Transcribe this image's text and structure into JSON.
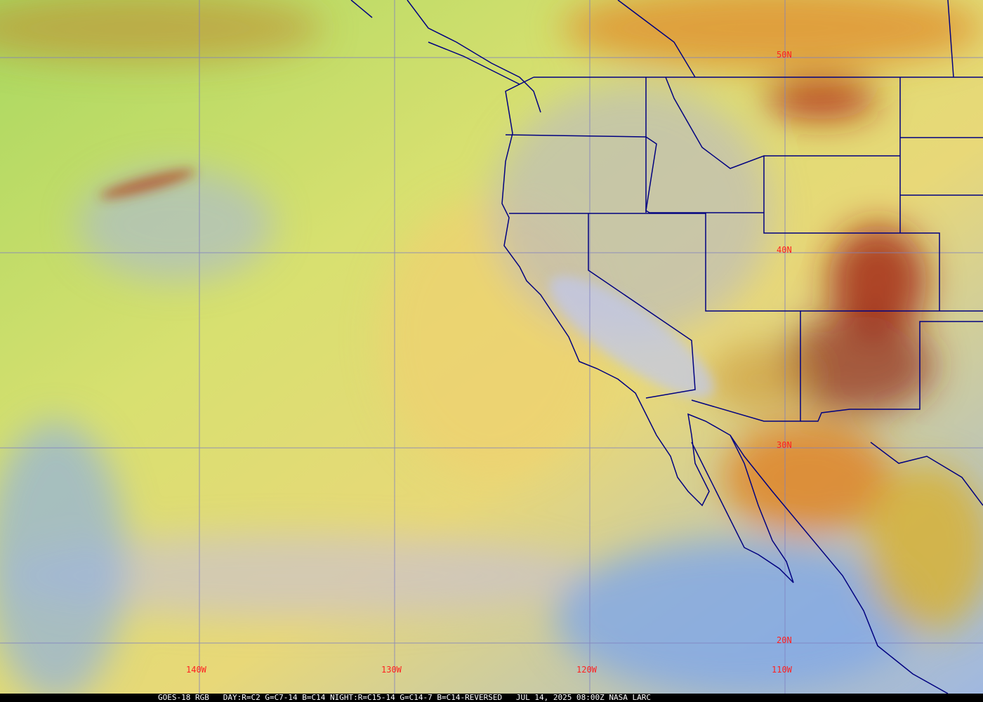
{
  "caption": "GOES-18 RGB   DAY:R=C2 G=C7-14 B=C14 NIGHT:R=C15-14 G=C14-7 B=C14-REVERSED   JUL 14, 2025 08:00Z NASA LARC",
  "latitude_labels": [
    "50N",
    "40N",
    "30N",
    "20N"
  ],
  "longitude_labels": [
    "140W",
    "130W",
    "120W",
    "110W"
  ],
  "colors": {
    "grid": "#8080c0",
    "borders": "#000080",
    "labels": "#ff2020",
    "ocean_haze": "#e6d870",
    "clear_ocean": "#9ab0e0",
    "high_cloud": "#c03020"
  }
}
